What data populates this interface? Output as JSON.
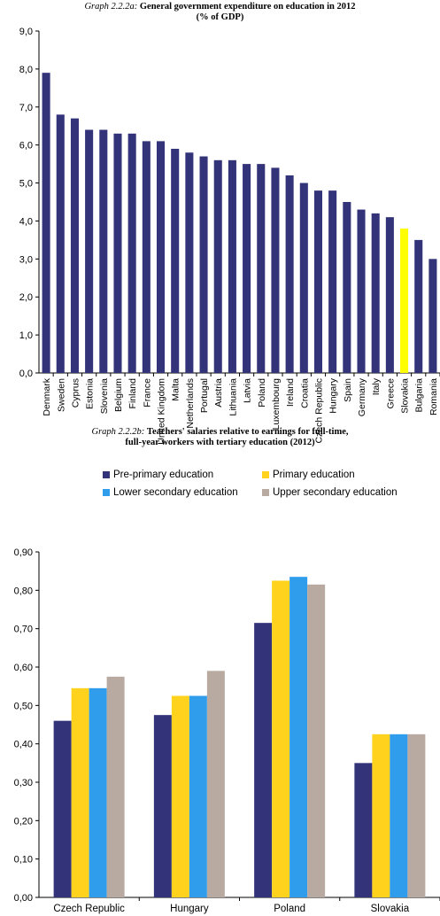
{
  "chart_data": [
    {
      "type": "bar",
      "title_prefix": "Graph 2.2.2a:",
      "title": "General government expenditure on education in 2012",
      "title_line2": "(% of GDP)",
      "categories": [
        "Denmark",
        "Sweden",
        "Cyprus",
        "Estonia",
        "Slovenia",
        "Belgium",
        "Finland",
        "France",
        "United Kingdom",
        "Malta",
        "Netherlands",
        "Portugal",
        "Austria",
        "Lithuania",
        "Latvia",
        "Poland",
        "Luxembourg",
        "Ireland",
        "Croatia",
        "Czech Republic",
        "Hungary",
        "Spain",
        "Germany",
        "Italy",
        "Greece",
        "Slovakia",
        "Bulgaria",
        "Romania"
      ],
      "values": [
        7.9,
        6.8,
        6.7,
        6.4,
        6.4,
        6.3,
        6.3,
        6.1,
        6.1,
        5.9,
        5.8,
        5.7,
        5.6,
        5.6,
        5.5,
        5.5,
        5.4,
        5.2,
        5.0,
        4.8,
        4.8,
        4.5,
        4.3,
        4.2,
        4.1,
        3.8,
        3.5,
        3.0
      ],
      "highlight_category": "Slovakia",
      "bar_color": "#33337a",
      "highlight_color": "#ffff00",
      "yticks": [
        "0,0",
        "1,0",
        "2,0",
        "3,0",
        "4,0",
        "5,0",
        "6,0",
        "7,0",
        "8,0",
        "9,0"
      ],
      "ylim": [
        0,
        9
      ]
    },
    {
      "type": "bar",
      "title_prefix": "Graph 2.2.2b:",
      "title": "Teachers' salaries relative to earnings for full-time,",
      "title_line2": "full-year workers with tertiary education (2012)",
      "categories": [
        "Czech Republic",
        "Hungary",
        "Poland",
        "Slovakia"
      ],
      "series": [
        {
          "name": "Pre-primary education",
          "color": "#33337a",
          "values": [
            0.46,
            0.475,
            0.715,
            0.35
          ]
        },
        {
          "name": "Primary education",
          "color": "#ffd21e",
          "values": [
            0.545,
            0.525,
            0.825,
            0.425
          ]
        },
        {
          "name": "Lower secondary education",
          "color": "#2f9dec",
          "values": [
            0.545,
            0.525,
            0.835,
            0.425
          ]
        },
        {
          "name": "Upper secondary education",
          "color": "#b8aaa0",
          "values": [
            0.575,
            0.59,
            0.815,
            0.425
          ]
        }
      ],
      "yticks": [
        "0,00",
        "0,10",
        "0,20",
        "0,30",
        "0,40",
        "0,50",
        "0,60",
        "0,70",
        "0,80",
        "0,90"
      ],
      "ylim": [
        0,
        0.9
      ]
    }
  ]
}
